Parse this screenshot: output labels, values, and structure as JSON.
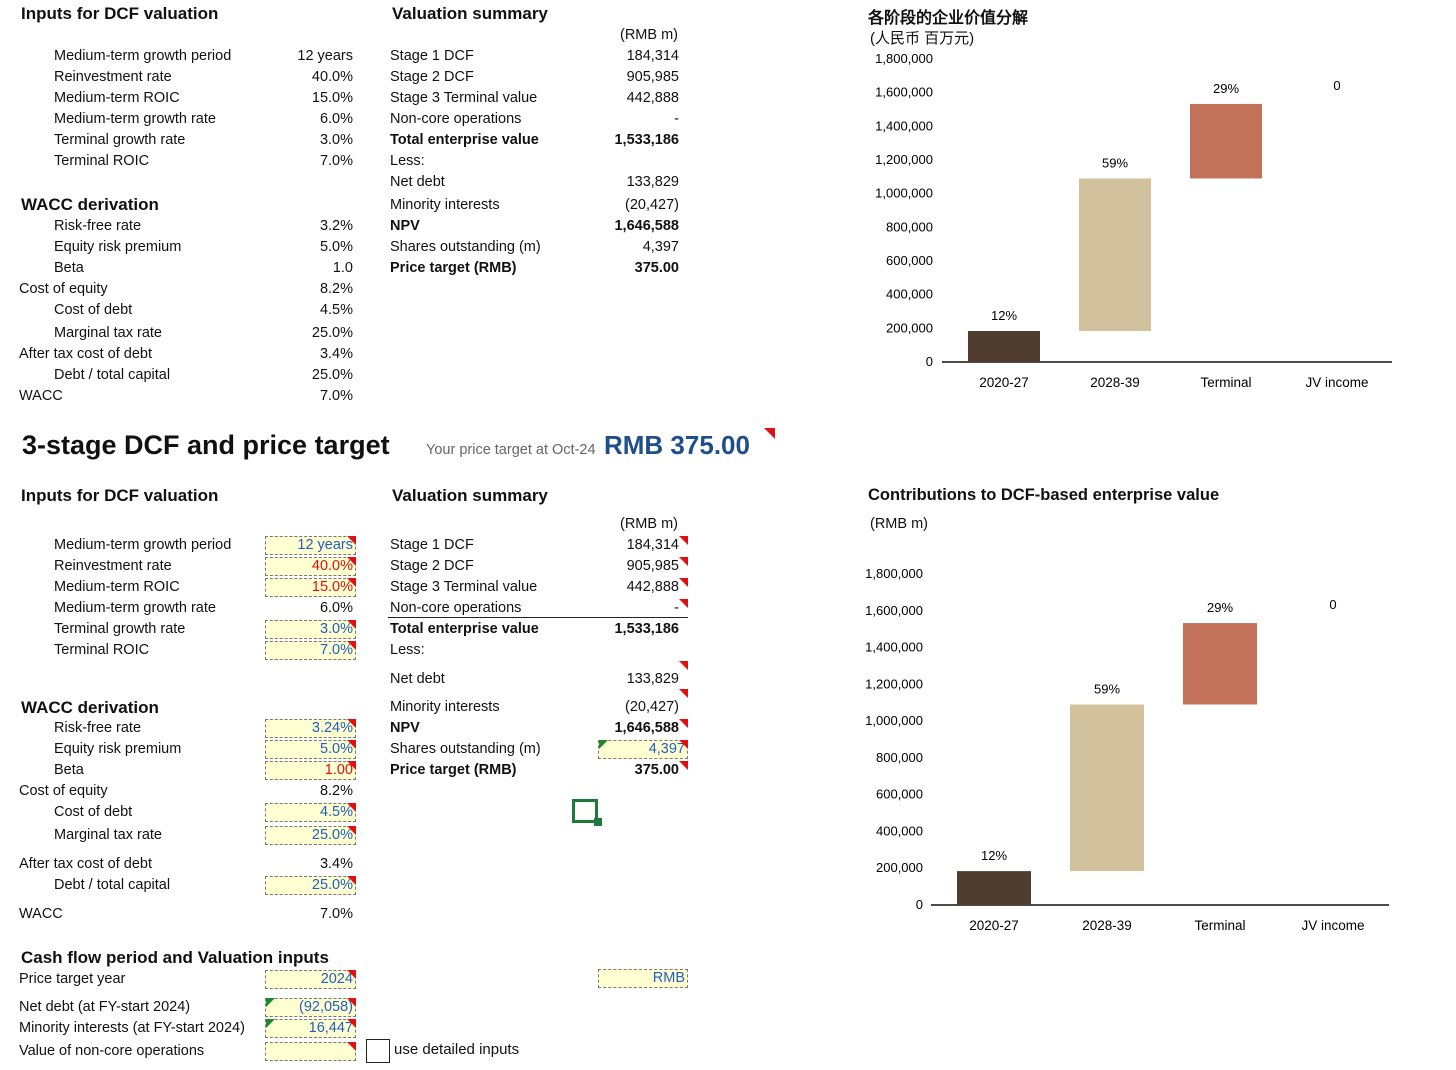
{
  "top": {
    "inputs_title": "Inputs for DCF valuation",
    "inputs": [
      {
        "label": "Medium-term growth period",
        "value": "12 years"
      },
      {
        "label": "Reinvestment rate",
        "value": "40.0%"
      },
      {
        "label": "Medium-term ROIC",
        "value": "15.0%"
      },
      {
        "label": "Medium-term growth rate",
        "value": "6.0%"
      },
      {
        "label": "Terminal growth rate",
        "value": "3.0%"
      },
      {
        "label": "Terminal ROIC",
        "value": "7.0%"
      }
    ],
    "wacc_title": "WACC derivation",
    "wacc": [
      {
        "label": "Risk-free rate",
        "value": "3.2%",
        "indent": true
      },
      {
        "label": "Equity risk premium",
        "value": "5.0%",
        "indent": true
      },
      {
        "label": "Beta",
        "value": "1.0",
        "indent": true
      },
      {
        "label": "Cost of equity",
        "value": "8.2%",
        "indent": false
      },
      {
        "label": "Cost of debt",
        "value": "4.5%",
        "indent": true
      },
      {
        "label": "Marginal tax rate",
        "value": "25.0%",
        "indent": true
      },
      {
        "label": "After tax cost of debt",
        "value": "3.4%",
        "indent": false
      },
      {
        "label": "Debt / total capital",
        "value": "25.0%",
        "indent": true
      },
      {
        "label": "WACC",
        "value": "7.0%",
        "indent": false
      }
    ],
    "summary_title": "Valuation summary",
    "unit": "(RMB m)",
    "summary": [
      {
        "label": "Stage 1 DCF",
        "value": "184,314",
        "bold": false
      },
      {
        "label": "Stage 2 DCF",
        "value": "905,985",
        "bold": false
      },
      {
        "label": "Stage 3 Terminal value",
        "value": "442,888",
        "bold": false
      },
      {
        "label": "Non-core operations",
        "value": "-",
        "bold": false
      },
      {
        "label": "Total enterprise value",
        "value": "1,533,186",
        "bold": true
      },
      {
        "label": "Less:",
        "value": "",
        "bold": false
      },
      {
        "label": "Net debt",
        "value": "133,829",
        "bold": false
      },
      {
        "label": "Minority interests",
        "value": "(20,427)",
        "bold": false
      },
      {
        "label": "NPV",
        "value": "1,646,588",
        "bold": true
      },
      {
        "label": "Shares outstanding (m)",
        "value": "4,397",
        "bold": false
      },
      {
        "label": "Price target (RMB)",
        "value": "375.00",
        "bold": true
      }
    ],
    "chart_title": "各阶段的企业价值分解",
    "chart_unit": "(人民币 百万元)"
  },
  "header": {
    "title": "3-stage DCF and price target",
    "subtitle": "Your price target at Oct-24",
    "price": "RMB 375.00"
  },
  "bottom": {
    "inputs_title": "Inputs for DCF valuation",
    "inputs": [
      {
        "label": "Medium-term growth period",
        "value": "12 years",
        "style": "blue"
      },
      {
        "label": "Reinvestment rate",
        "value": "40.0%",
        "style": "red"
      },
      {
        "label": "Medium-term ROIC",
        "value": "15.0%",
        "style": "red"
      },
      {
        "label": "Medium-term growth rate",
        "value": "6.0%",
        "style": "plain"
      },
      {
        "label": "Terminal growth rate",
        "value": "3.0%",
        "style": "blue"
      },
      {
        "label": "Terminal ROIC",
        "value": "7.0%",
        "style": "blue"
      }
    ],
    "wacc_title": "WACC derivation",
    "wacc": [
      {
        "label": "Risk-free rate",
        "value": "3.24%",
        "style": "blue"
      },
      {
        "label": "Equity risk premium",
        "value": "5.0%",
        "style": "blue"
      },
      {
        "label": "Beta",
        "value": "1.00",
        "style": "red"
      },
      {
        "label": "Cost of equity",
        "value": "8.2%",
        "style": "plain"
      },
      {
        "label": "Cost of debt",
        "value": "4.5%",
        "style": "blue"
      },
      {
        "label": "Marginal tax rate",
        "value": "25.0%",
        "style": "blue"
      },
      {
        "label": "After tax cost of debt",
        "value": "3.4%",
        "style": "plain"
      },
      {
        "label": "Debt / total capital",
        "value": "25.0%",
        "style": "blue"
      },
      {
        "label": "WACC",
        "value": "7.0%",
        "style": "plain"
      }
    ],
    "summary_title": "Valuation summary",
    "unit": "(RMB m)",
    "summary": [
      {
        "label": "Stage 1 DCF",
        "value": "184,314"
      },
      {
        "label": "Stage 2 DCF",
        "value": "905,985"
      },
      {
        "label": "Stage 3 Terminal value",
        "value": "442,888"
      },
      {
        "label": "Non-core operations",
        "value": "-"
      },
      {
        "label": "Total enterprise value",
        "value": "1,533,186"
      },
      {
        "label": "Less:",
        "value": ""
      },
      {
        "label": "Net debt",
        "value": "133,829"
      },
      {
        "label": "Minority interests",
        "value": "(20,427)"
      },
      {
        "label": "NPV",
        "value": "1,646,588"
      },
      {
        "label": "Shares outstanding (m)",
        "value": "4,397"
      },
      {
        "label": "Price target (RMB)",
        "value": "375.00"
      }
    ],
    "chart_title": "Contributions to DCF-based enterprise value",
    "chart_unit": "(RMB m)",
    "cashflow_title": "Cash flow period and Valuation inputs",
    "cashflow": [
      {
        "label": "Price target year",
        "value": "2024"
      },
      {
        "label": "Net debt (at FY-start 2024)",
        "value": "(92,058)"
      },
      {
        "label": "Minority interests (at FY-start 2024)",
        "value": "16,447"
      },
      {
        "label": "Value of non-core operations",
        "value": ""
      }
    ],
    "currency_value": "RMB",
    "checkbox_label": "use detailed inputs"
  },
  "chart_data": [
    {
      "type": "bar",
      "subtype": "waterfall",
      "title": "各阶段的企业价值分解",
      "subtitle": "(人民币 百万元)",
      "categories": [
        "2020-27",
        "2028-39",
        "Terminal",
        "JV income"
      ],
      "values": [
        184314,
        905985,
        442888,
        0
      ],
      "labels": [
        "12%",
        "59%",
        "29%",
        "0"
      ],
      "colors": [
        "#4f3d30",
        "#d1c19c",
        "#c27258",
        "#ffffff"
      ],
      "ylim": [
        0,
        1800000
      ],
      "yticks": [
        "0",
        "200,000",
        "400,000",
        "600,000",
        "800,000",
        "1,000,000",
        "1,200,000",
        "1,400,000",
        "1,600,000",
        "1,800,000"
      ],
      "grid": false
    },
    {
      "type": "bar",
      "subtype": "waterfall",
      "title": "Contributions to DCF-based enterprise value",
      "subtitle": "(RMB m)",
      "categories": [
        "2020-27",
        "2028-39",
        "Terminal",
        "JV income"
      ],
      "values": [
        184314,
        905985,
        442888,
        0
      ],
      "labels": [
        "12%",
        "59%",
        "29%",
        "0"
      ],
      "colors": [
        "#4f3d30",
        "#d1c19c",
        "#c27258",
        "#ffffff"
      ],
      "ylim": [
        0,
        1800000
      ],
      "yticks": [
        "0",
        "200,000",
        "400,000",
        "600,000",
        "800,000",
        "1,000,000",
        "1,200,000",
        "1,400,000",
        "1,600,000",
        "1,800,000"
      ],
      "grid": false
    }
  ]
}
